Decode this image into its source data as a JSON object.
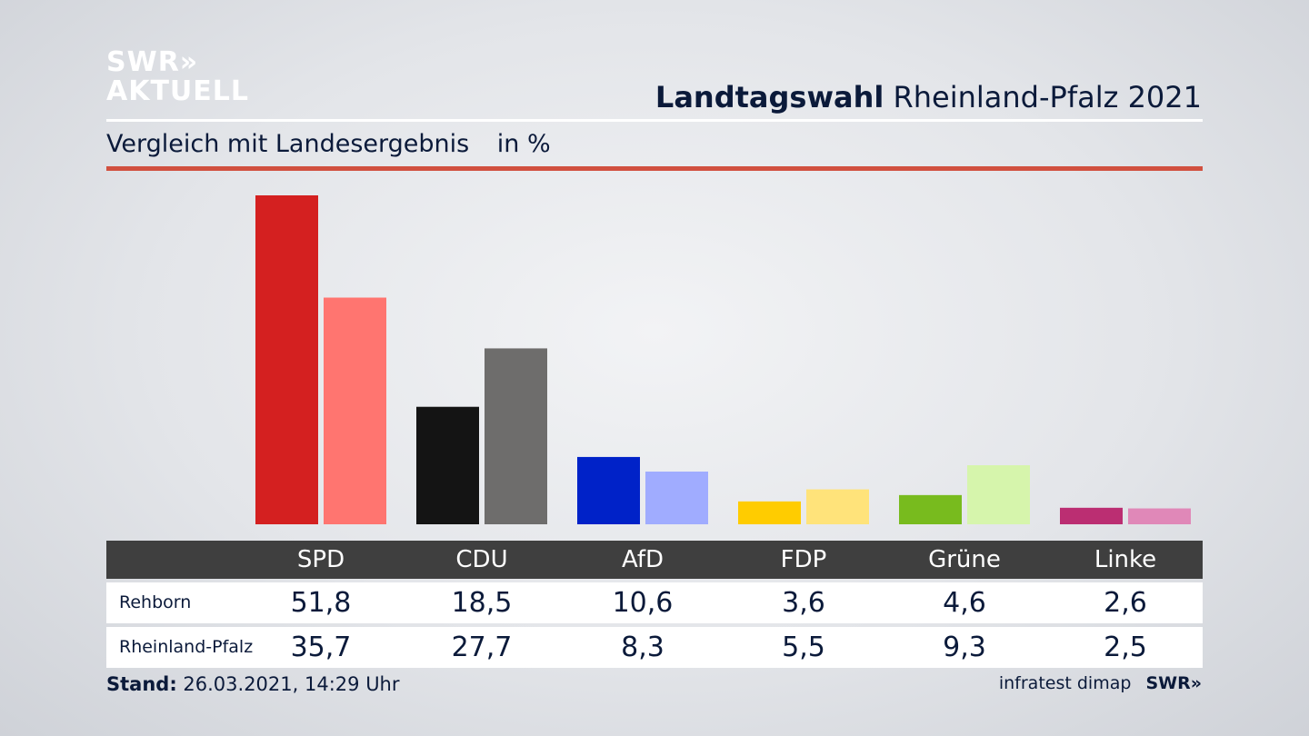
{
  "brand": {
    "logo_line1": "SWR»",
    "logo_line2": "AKTUELL",
    "footer_logo": "SWR»"
  },
  "header": {
    "title_bold": "Landtagswahl",
    "title_rest": "Rheinland-Pfalz 2021"
  },
  "subtitle": {
    "text": "Vergleich mit Landesergebnis",
    "unit": "in %"
  },
  "chart_data": {
    "type": "bar",
    "categories": [
      "SPD",
      "CDU",
      "AfD",
      "FDP",
      "Grüne",
      "Linke"
    ],
    "series": [
      {
        "name": "Rehborn",
        "values": [
          51.8,
          18.5,
          10.6,
          3.6,
          4.6,
          2.6
        ],
        "colors": [
          "#d42020",
          "#141414",
          "#0022c8",
          "#ffcc00",
          "#78bb1e",
          "#bb2e72"
        ]
      },
      {
        "name": "Rheinland-Pfalz",
        "values": [
          35.7,
          27.7,
          8.3,
          5.5,
          9.3,
          2.5
        ],
        "colors": [
          "#ff7570",
          "#6e6d6c",
          "#a0acff",
          "#ffe37a",
          "#d6f5ac",
          "#e088b8"
        ]
      }
    ],
    "value_labels": {
      "Rehborn": [
        "51,8",
        "18,5",
        "10,6",
        "3,6",
        "4,6",
        "2,6"
      ],
      "Rheinland-Pfalz": [
        "35,7",
        "27,7",
        "8,3",
        "5,5",
        "9,3",
        "2,5"
      ]
    }
  },
  "footer": {
    "stand_label": "Stand:",
    "stand_value": "26.03.2021, 14:29 Uhr",
    "source": "infratest dimap"
  }
}
